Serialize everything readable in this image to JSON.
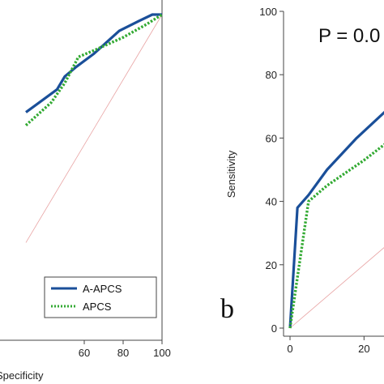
{
  "chart_data": [
    {
      "type": "line",
      "panel": "a",
      "xlabel": "Specificity",
      "ylabel": "",
      "xlim": [
        0,
        100
      ],
      "ylim": [
        0,
        100
      ],
      "xticks": [
        "60",
        "80",
        "100"
      ],
      "grid": false,
      "legend_position": "bottom-right",
      "reference_line": true,
      "series": [
        {
          "name": "A-APCS",
          "color": "#1a4f99",
          "style": "solid",
          "points": [
            [
              30,
              70
            ],
            [
              46,
              77
            ],
            [
              50,
              81
            ],
            [
              56,
              84
            ],
            [
              65,
              88
            ],
            [
              78,
              95
            ],
            [
              88,
              98
            ],
            [
              95,
              100
            ],
            [
              100,
              100
            ]
          ]
        },
        {
          "name": "APCS",
          "color": "#33aa33",
          "style": "dotted",
          "points": [
            [
              30,
              66
            ],
            [
              43,
              73
            ],
            [
              50,
              79
            ],
            [
              57,
              87
            ],
            [
              65,
              89
            ],
            [
              80,
              93
            ],
            [
              92,
              97
            ],
            [
              100,
              100
            ]
          ]
        }
      ]
    },
    {
      "type": "line",
      "panel": "b",
      "annotation": "P = 0.0",
      "xlabel": "",
      "ylabel": "Sensitivity",
      "xlim": [
        0,
        30
      ],
      "ylim": [
        0,
        100
      ],
      "xticks": [
        "0",
        "20"
      ],
      "yticks": [
        "0",
        "20",
        "40",
        "60",
        "80",
        "100"
      ],
      "grid": false,
      "reference_line": true,
      "series": [
        {
          "name": "A-APCS",
          "color": "#1a4f99",
          "style": "solid",
          "points": [
            [
              0,
              0
            ],
            [
              2,
              38
            ],
            [
              5,
              42
            ],
            [
              10,
              50
            ],
            [
              18,
              60
            ],
            [
              30,
              73
            ]
          ]
        },
        {
          "name": "APCS",
          "color": "#33aa33",
          "style": "dotted",
          "points": [
            [
              0,
              0
            ],
            [
              5,
              40
            ],
            [
              10,
              45
            ],
            [
              20,
              53
            ],
            [
              30,
              62
            ]
          ]
        }
      ]
    }
  ]
}
